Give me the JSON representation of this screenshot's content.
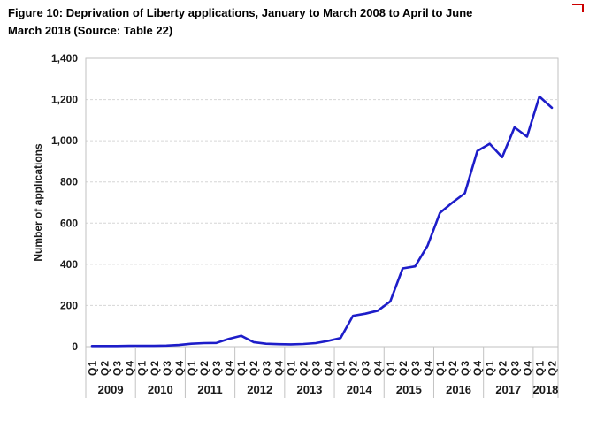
{
  "figure": {
    "title": "Figure 10: Deprivation of Liberty applications, January to March 2008 to April to June March 2018 (Source: Table 22)",
    "title_lines": [
      "Figure 10: Deprivation of Liberty applications, January to March 2008 to April to June",
      "March 2018 (Source: Table 22)"
    ],
    "annotation_mark_color": "#cc0000"
  },
  "chart_data": {
    "type": "line",
    "title": "Figure 10: Deprivation of Liberty applications, January to March 2008 to April to June March 2018 (Source: Table 22)",
    "xlabel": "",
    "ylabel": "Number of applications",
    "ylim": [
      0,
      1400
    ],
    "ytick_step": 200,
    "ytick_labels": [
      "0",
      "200",
      "400",
      "600",
      "800",
      "1,000",
      "1,200",
      "1,400"
    ],
    "grid": "horizontal-dashed",
    "legend": "none",
    "line_color": "#1d1dc9",
    "gridline_color": "#d6d6d6",
    "border_color": "#c2c2c2",
    "years": [
      {
        "label": "2009",
        "quarters": [
          "Q1",
          "Q2",
          "Q3",
          "Q4"
        ],
        "values": [
          3,
          3,
          3,
          4
        ]
      },
      {
        "label": "2010",
        "quarters": [
          "Q1",
          "Q2",
          "Q3",
          "Q4"
        ],
        "values": [
          4,
          4,
          5,
          8
        ]
      },
      {
        "label": "2011",
        "quarters": [
          "Q1",
          "Q2",
          "Q3",
          "Q4"
        ],
        "values": [
          14,
          17,
          18,
          38
        ]
      },
      {
        "label": "2012",
        "quarters": [
          "Q1",
          "Q2",
          "Q3",
          "Q4"
        ],
        "values": [
          53,
          22,
          14,
          12
        ]
      },
      {
        "label": "2013",
        "quarters": [
          "Q1",
          "Q2",
          "Q3",
          "Q4"
        ],
        "values": [
          11,
          13,
          17,
          28
        ]
      },
      {
        "label": "2014",
        "quarters": [
          "Q1",
          "Q2",
          "Q3",
          "Q4"
        ],
        "values": [
          42,
          150,
          160,
          175
        ]
      },
      {
        "label": "2015",
        "quarters": [
          "Q1",
          "Q2",
          "Q3",
          "Q4"
        ],
        "values": [
          220,
          380,
          390,
          490
        ]
      },
      {
        "label": "2016",
        "quarters": [
          "Q1",
          "Q2",
          "Q3",
          "Q4"
        ],
        "values": [
          650,
          700,
          745,
          950
        ]
      },
      {
        "label": "2017",
        "quarters": [
          "Q1",
          "Q2",
          "Q3",
          "Q4"
        ],
        "values": [
          985,
          920,
          1065,
          1020
        ]
      },
      {
        "label": "2018",
        "quarters": [
          "Q1",
          "Q2"
        ],
        "values": [
          1215,
          1160
        ]
      }
    ]
  }
}
